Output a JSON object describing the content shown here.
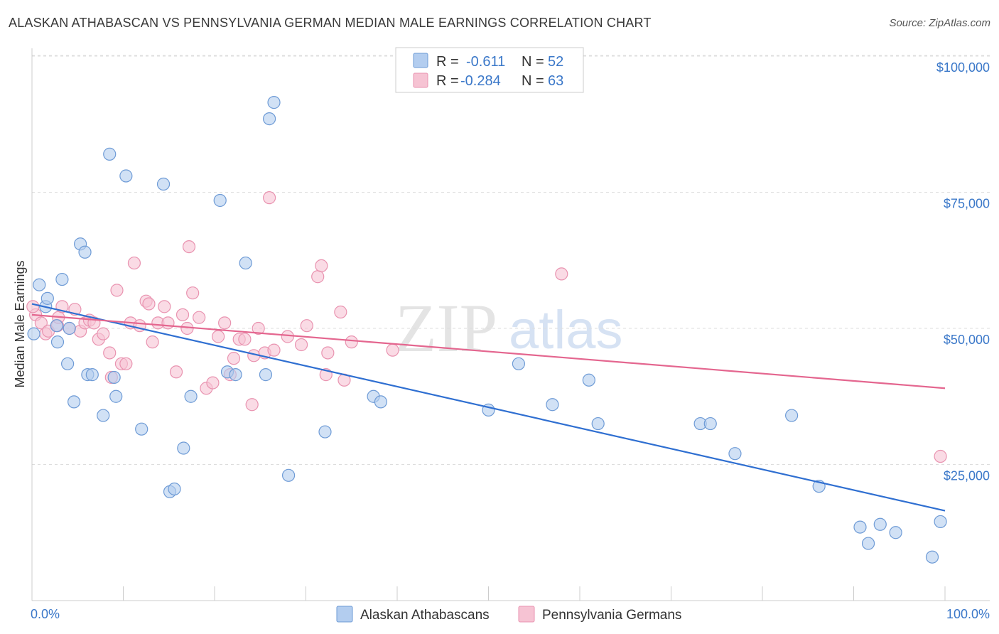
{
  "title": "ALASKAN ATHABASCAN VS PENNSYLVANIA GERMAN MEDIAN MALE EARNINGS CORRELATION CHART",
  "source": "Source: ZipAtlas.com",
  "watermark": {
    "zip": "ZIP",
    "atlas": "atlas"
  },
  "legend_box": {
    "rows": [
      {
        "r_label": "R =",
        "r_value": "-0.611",
        "n_label": "N =",
        "n_value": "52"
      },
      {
        "r_label": "R =",
        "r_value": "-0.284",
        "n_label": "N =",
        "n_value": "63"
      }
    ]
  },
  "colors": {
    "blue_fill": "#b3cdef",
    "blue_stroke": "#6e9bd6",
    "blue_line": "#2f6fd1",
    "pink_fill": "#f6c3d3",
    "pink_stroke": "#e993b0",
    "pink_line": "#e4668f",
    "tick_label": "#3b78c9",
    "grid": "#dddddd"
  },
  "chart_data": {
    "type": "scatter",
    "title": "ALASKAN ATHABASCAN VS PENNSYLVANIA GERMAN MEDIAN MALE EARNINGS CORRELATION CHART",
    "xlabel": "",
    "ylabel": "Median Male Earnings",
    "xlim": [
      0,
      100
    ],
    "ylim": [
      0,
      105000
    ],
    "x_tick_labels": [
      "0.0%",
      "100.0%"
    ],
    "y_ticks": [
      25000,
      50000,
      75000,
      100000
    ],
    "y_tick_labels": [
      "$25,000",
      "$50,000",
      "$75,000",
      "$100,000"
    ],
    "grid": true,
    "legend_position": "bottom",
    "series": [
      {
        "name": "Alaskan Athabascans",
        "r": -0.611,
        "n": 52,
        "trend": {
          "x": [
            0,
            100
          ],
          "y": [
            54500,
            16500
          ]
        },
        "points": [
          [
            0.2,
            49000
          ],
          [
            0.8,
            58000
          ],
          [
            1.5,
            54000
          ],
          [
            1.7,
            55500
          ],
          [
            2.7,
            50500
          ],
          [
            2.8,
            47500
          ],
          [
            3.3,
            59000
          ],
          [
            3.9,
            43500
          ],
          [
            4.1,
            50000
          ],
          [
            4.6,
            36500
          ],
          [
            5.3,
            65500
          ],
          [
            5.8,
            64000
          ],
          [
            6.1,
            41500
          ],
          [
            6.6,
            41500
          ],
          [
            7.8,
            34000
          ],
          [
            8.5,
            82000
          ],
          [
            9.0,
            41000
          ],
          [
            9.2,
            37500
          ],
          [
            10.3,
            78000
          ],
          [
            12.0,
            31500
          ],
          [
            14.4,
            76500
          ],
          [
            15.1,
            20000
          ],
          [
            15.6,
            20500
          ],
          [
            16.6,
            28000
          ],
          [
            17.4,
            37500
          ],
          [
            20.6,
            73500
          ],
          [
            21.4,
            42000
          ],
          [
            22.3,
            41500
          ],
          [
            23.4,
            62000
          ],
          [
            25.6,
            41500
          ],
          [
            26.0,
            88500
          ],
          [
            26.5,
            91500
          ],
          [
            28.1,
            23000
          ],
          [
            32.1,
            31000
          ],
          [
            37.4,
            37500
          ],
          [
            38.2,
            36500
          ],
          [
            50.0,
            35000
          ],
          [
            53.3,
            43500
          ],
          [
            57.0,
            36000
          ],
          [
            61.0,
            40500
          ],
          [
            62.0,
            32500
          ],
          [
            73.2,
            32500
          ],
          [
            74.3,
            32500
          ],
          [
            77.0,
            27000
          ],
          [
            83.2,
            34000
          ],
          [
            86.2,
            21000
          ],
          [
            90.7,
            13500
          ],
          [
            91.6,
            10500
          ],
          [
            92.9,
            14000
          ],
          [
            94.6,
            12500
          ],
          [
            98.6,
            8000
          ],
          [
            99.5,
            14500
          ]
        ]
      },
      {
        "name": "Pennsylvania Germans",
        "r": -0.284,
        "n": 63,
        "trend": {
          "x": [
            0,
            100
          ],
          "y": [
            52500,
            39000
          ]
        },
        "points": [
          [
            0.4,
            52500
          ],
          [
            1.0,
            51000
          ],
          [
            1.5,
            49000
          ],
          [
            1.8,
            49500
          ],
          [
            2.8,
            50500
          ],
          [
            2.9,
            52000
          ],
          [
            3.3,
            54000
          ],
          [
            4.1,
            50000
          ],
          [
            4.7,
            53500
          ],
          [
            5.3,
            49500
          ],
          [
            5.8,
            51000
          ],
          [
            6.3,
            51500
          ],
          [
            6.8,
            51000
          ],
          [
            7.3,
            48000
          ],
          [
            7.8,
            49000
          ],
          [
            8.5,
            45500
          ],
          [
            8.7,
            41000
          ],
          [
            9.3,
            57000
          ],
          [
            9.8,
            43500
          ],
          [
            10.3,
            43500
          ],
          [
            10.8,
            51000
          ],
          [
            11.2,
            62000
          ],
          [
            11.8,
            50500
          ],
          [
            12.5,
            55000
          ],
          [
            12.8,
            54500
          ],
          [
            13.2,
            47500
          ],
          [
            13.8,
            51000
          ],
          [
            14.5,
            54000
          ],
          [
            14.9,
            51000
          ],
          [
            15.8,
            42000
          ],
          [
            16.5,
            52500
          ],
          [
            17.0,
            50000
          ],
          [
            17.2,
            65000
          ],
          [
            17.6,
            56500
          ],
          [
            18.3,
            52000
          ],
          [
            19.1,
            39000
          ],
          [
            19.8,
            40000
          ],
          [
            20.4,
            48500
          ],
          [
            21.1,
            51000
          ],
          [
            21.7,
            41500
          ],
          [
            22.1,
            44500
          ],
          [
            22.7,
            48000
          ],
          [
            23.3,
            48000
          ],
          [
            24.1,
            36000
          ],
          [
            24.3,
            45000
          ],
          [
            24.8,
            50000
          ],
          [
            25.5,
            45500
          ],
          [
            26.0,
            74000
          ],
          [
            26.5,
            46000
          ],
          [
            28.0,
            48500
          ],
          [
            29.5,
            47000
          ],
          [
            30.1,
            50500
          ],
          [
            31.3,
            59500
          ],
          [
            31.7,
            61500
          ],
          [
            32.2,
            41500
          ],
          [
            32.4,
            45500
          ],
          [
            33.8,
            53000
          ],
          [
            34.2,
            40500
          ],
          [
            35.0,
            47500
          ],
          [
            39.5,
            46000
          ],
          [
            58.0,
            60000
          ],
          [
            99.5,
            26500
          ],
          [
            0.1,
            54000
          ]
        ]
      }
    ]
  },
  "bottom_legend": {
    "items": [
      "Alaskan Athabascans",
      "Pennsylvania Germans"
    ]
  }
}
